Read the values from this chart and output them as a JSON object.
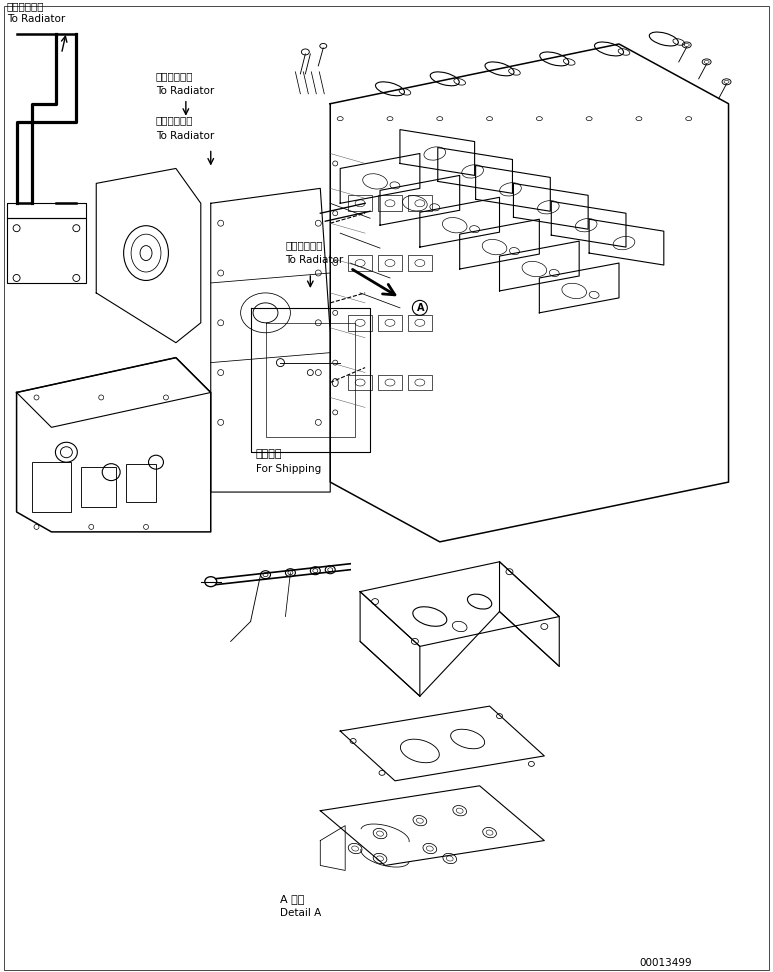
{
  "bg_color": "#ffffff",
  "line_color": "#000000",
  "text_color": "#000000",
  "page_width": 7.73,
  "page_height": 9.72,
  "dpi": 100,
  "labels": {
    "top_left_jp": "ラジエータへ",
    "top_left_en": "To Radiator",
    "mid_left_jp": "ラジエータへ",
    "mid_left_en": "To Radiator",
    "mid2_left_jp": "ラジエータへ",
    "mid2_left_en": "To Radiator",
    "center_jp": "ラジエータへ",
    "center_en": "To Radiator",
    "shipping_jp": "運携部品",
    "shipping_en": "For Shipping",
    "detail_jp": "A 詳細",
    "detail_en": "Detail A",
    "part_number": "00013499"
  },
  "font_size_label": 7.5,
  "font_size_partnumber": 7.5
}
